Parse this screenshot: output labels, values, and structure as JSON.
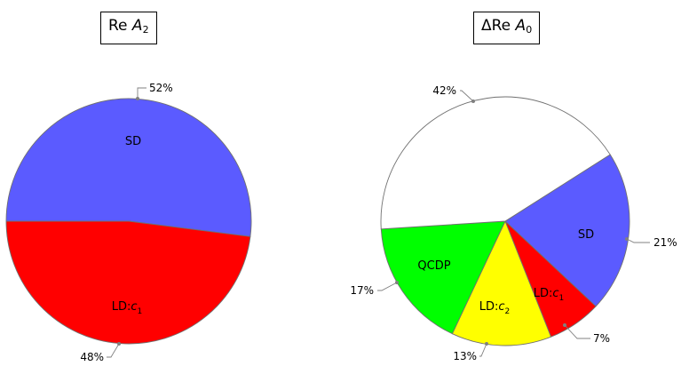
{
  "chart_data": [
    {
      "type": "pie",
      "title": "Re A2",
      "title_parts": {
        "prefix": "Re ",
        "symbol": "A",
        "subscript": "2"
      },
      "slices": [
        {
          "label": "SD",
          "percent_label": "52%",
          "value": 52,
          "color": "#5b5bff"
        },
        {
          "label": "LD:c1",
          "label_parts": {
            "prefix": "LD:",
            "symbol": "c",
            "subscript": "1"
          },
          "percent_label": "48%",
          "value": 48,
          "color": "#ff0000"
        }
      ]
    },
    {
      "type": "pie",
      "title": "ΔRe A0",
      "title_parts": {
        "prefix": "ΔRe ",
        "symbol": "A",
        "subscript": "0"
      },
      "slices": [
        {
          "label": "SD",
          "percent_label": "21%",
          "value": 21,
          "color": "#5b5bff"
        },
        {
          "label": "LD:c1",
          "label_parts": {
            "prefix": "LD:",
            "symbol": "c",
            "subscript": "1"
          },
          "percent_label": "7%",
          "value": 7,
          "color": "#ff0000"
        },
        {
          "label": "LD:c2",
          "label_parts": {
            "prefix": "LD:",
            "symbol": "c",
            "subscript": "2"
          },
          "percent_label": "13%",
          "value": 13,
          "color": "#ffff00"
        },
        {
          "label": "QCDP",
          "percent_label": "17%",
          "value": 17,
          "color": "#00ff00"
        },
        {
          "label": "",
          "percent_label": "42%",
          "value": 42,
          "color": "#ffffff"
        }
      ]
    }
  ]
}
